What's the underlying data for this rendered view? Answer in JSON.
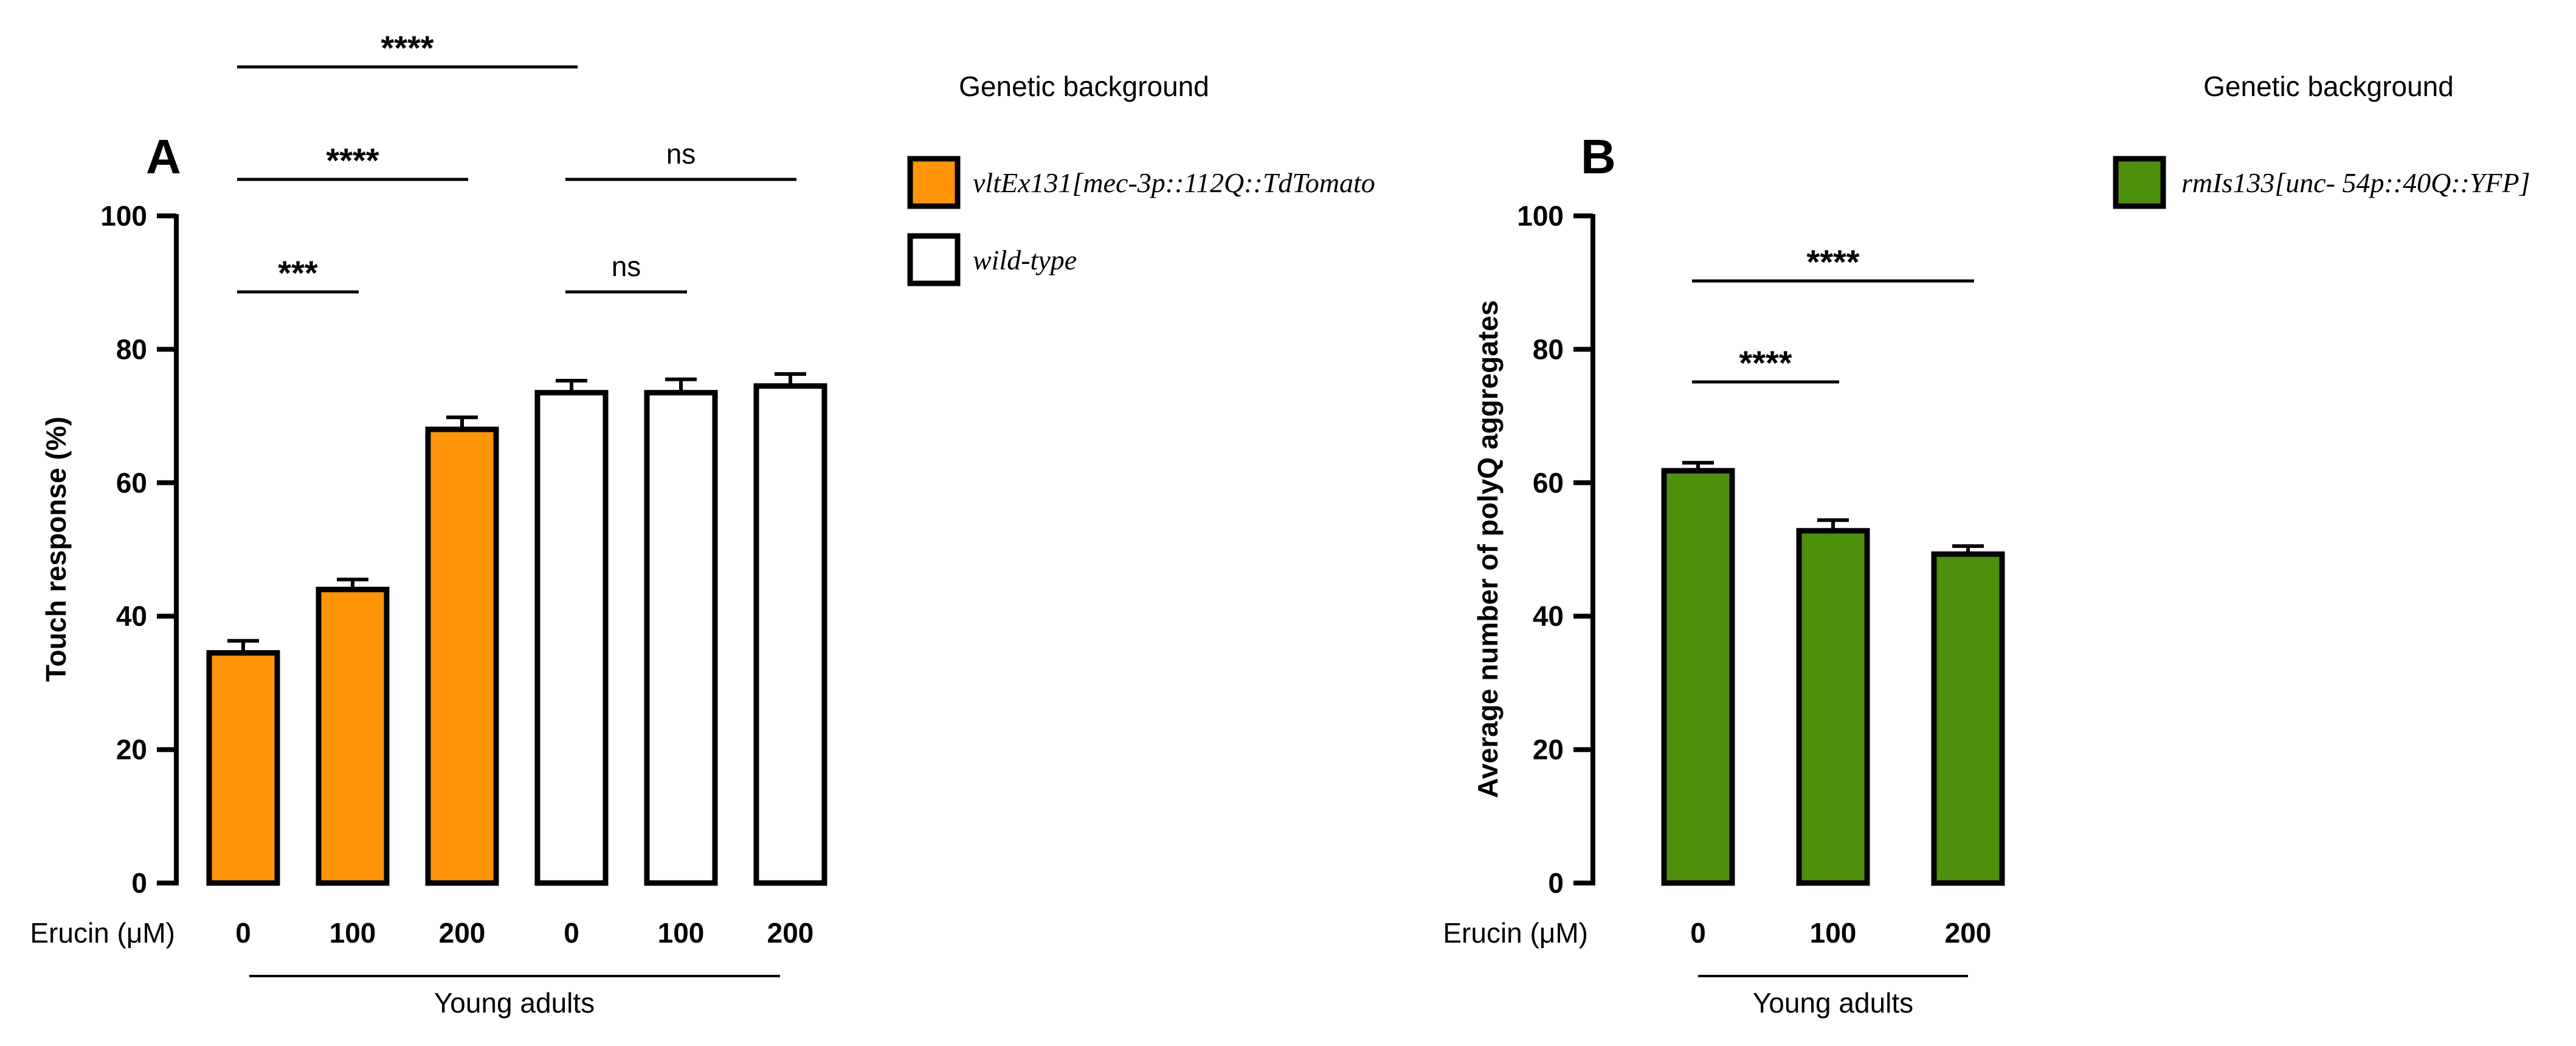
{
  "chart_data": [
    {
      "panel_label": "A",
      "type": "bar",
      "xlabel": "Erucin (μM)",
      "ylabel": "Touch response (%)",
      "ylim": [
        0,
        100
      ],
      "yticks": [
        "0",
        "20",
        "40",
        "60",
        "80",
        "100"
      ],
      "categories": [
        "0",
        "100",
        "200",
        "0",
        "100",
        "200"
      ],
      "values": [
        34.5,
        44.0,
        68.0,
        73.5,
        73.5,
        74.5
      ],
      "errors": [
        1.8,
        1.5,
        1.8,
        1.8,
        2.0,
        1.8
      ],
      "groups": [
        "vltEx131",
        "vltEx131",
        "vltEx131",
        "wild-type",
        "wild-type",
        "wild-type"
      ],
      "group_label": "Young adults",
      "legend_title": "Genetic background",
      "legend": [
        {
          "key": "vltEx131",
          "label": "vltEx131[mec-3p::112Q::TdTomato",
          "color": "#ff9408"
        },
        {
          "key": "wild-type",
          "label": "wild-type",
          "color": "#ffffff"
        }
      ],
      "significance": [
        {
          "from": 0,
          "to": 3,
          "text": "****"
        },
        {
          "from": 0,
          "to": 2,
          "text": "****"
        },
        {
          "from": 3,
          "to": 5,
          "text": "ns"
        },
        {
          "from": 0,
          "to": 1,
          "text": "***"
        },
        {
          "from": 3,
          "to": 4,
          "text": "ns"
        }
      ]
    },
    {
      "panel_label": "B",
      "type": "bar",
      "xlabel": "Erucin (μM)",
      "ylabel": "Average number of polyQ aggregates",
      "ylim": [
        0,
        100
      ],
      "yticks": [
        "0",
        "20",
        "40",
        "60",
        "80",
        "100"
      ],
      "categories": [
        "0",
        "100",
        "200"
      ],
      "values": [
        61.8,
        52.8,
        49.3
      ],
      "errors": [
        1.2,
        1.6,
        1.2
      ],
      "groups": [
        "rmIs133",
        "rmIs133",
        "rmIs133"
      ],
      "group_label": "Young adults",
      "legend_title": "Genetic background",
      "legend": [
        {
          "key": "rmIs133",
          "label": "rmIs133[unc- 54p::40Q::YFP]",
          "color": "#4e8f0e"
        }
      ],
      "significance": [
        {
          "from": 0,
          "to": 2,
          "text": "****"
        },
        {
          "from": 0,
          "to": 1,
          "text": "****"
        }
      ]
    }
  ]
}
